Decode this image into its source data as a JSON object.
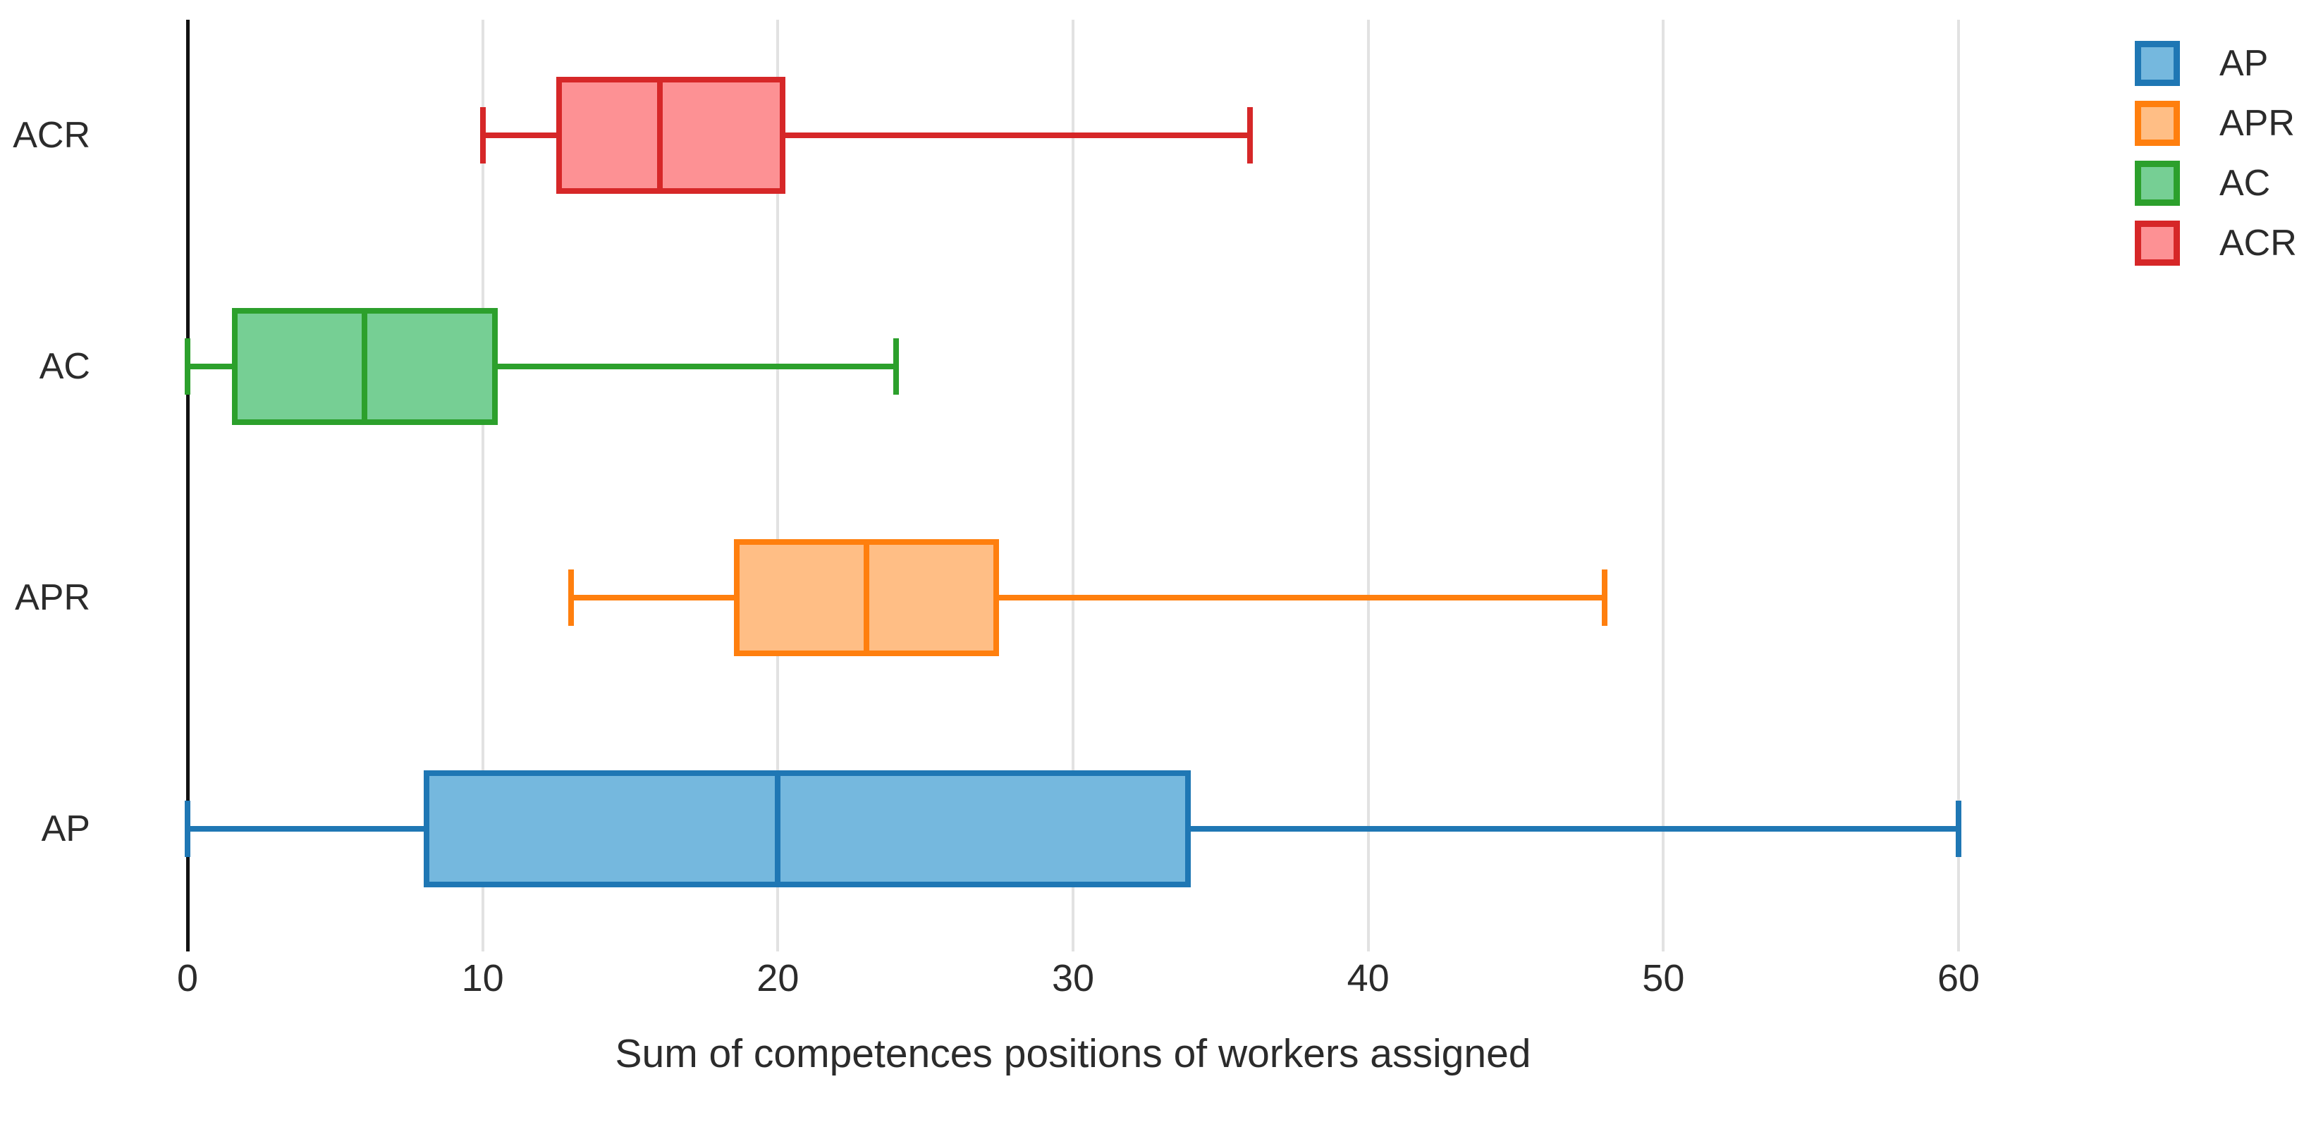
{
  "chart_data": {
    "type": "box",
    "orientation": "horizontal",
    "title": "",
    "xlabel": "Sum of competences positions of workers assigned",
    "ylabel": "",
    "xlim": [
      0,
      60
    ],
    "xticks": [
      0,
      10,
      20,
      30,
      40,
      50,
      60
    ],
    "grid": true,
    "legend_position": "top-right",
    "categories_bottom_to_top": [
      "AP",
      "APR",
      "AC",
      "ACR"
    ],
    "series": [
      {
        "name": "AP",
        "color": "#1f77b4",
        "fill": "#75b8de",
        "min": 0,
        "q1": 8,
        "median": 20,
        "q3": 34,
        "max": 60
      },
      {
        "name": "APR",
        "color": "#ff7f0e",
        "fill": "#ffbe85",
        "min": 13,
        "q1": 18.5,
        "median": 23,
        "q3": 27.5,
        "max": 48
      },
      {
        "name": "AC",
        "color": "#2ca02c",
        "fill": "#76cf94",
        "min": 0,
        "q1": 1.5,
        "median": 6,
        "q3": 10.5,
        "max": 24
      },
      {
        "name": "ACR",
        "color": "#d62728",
        "fill": "#fd9194",
        "min": 10,
        "q1": 12.5,
        "median": 16,
        "q3": 20.25,
        "max": 36
      }
    ],
    "legend": [
      "AP",
      "APR",
      "AC",
      "ACR"
    ]
  }
}
